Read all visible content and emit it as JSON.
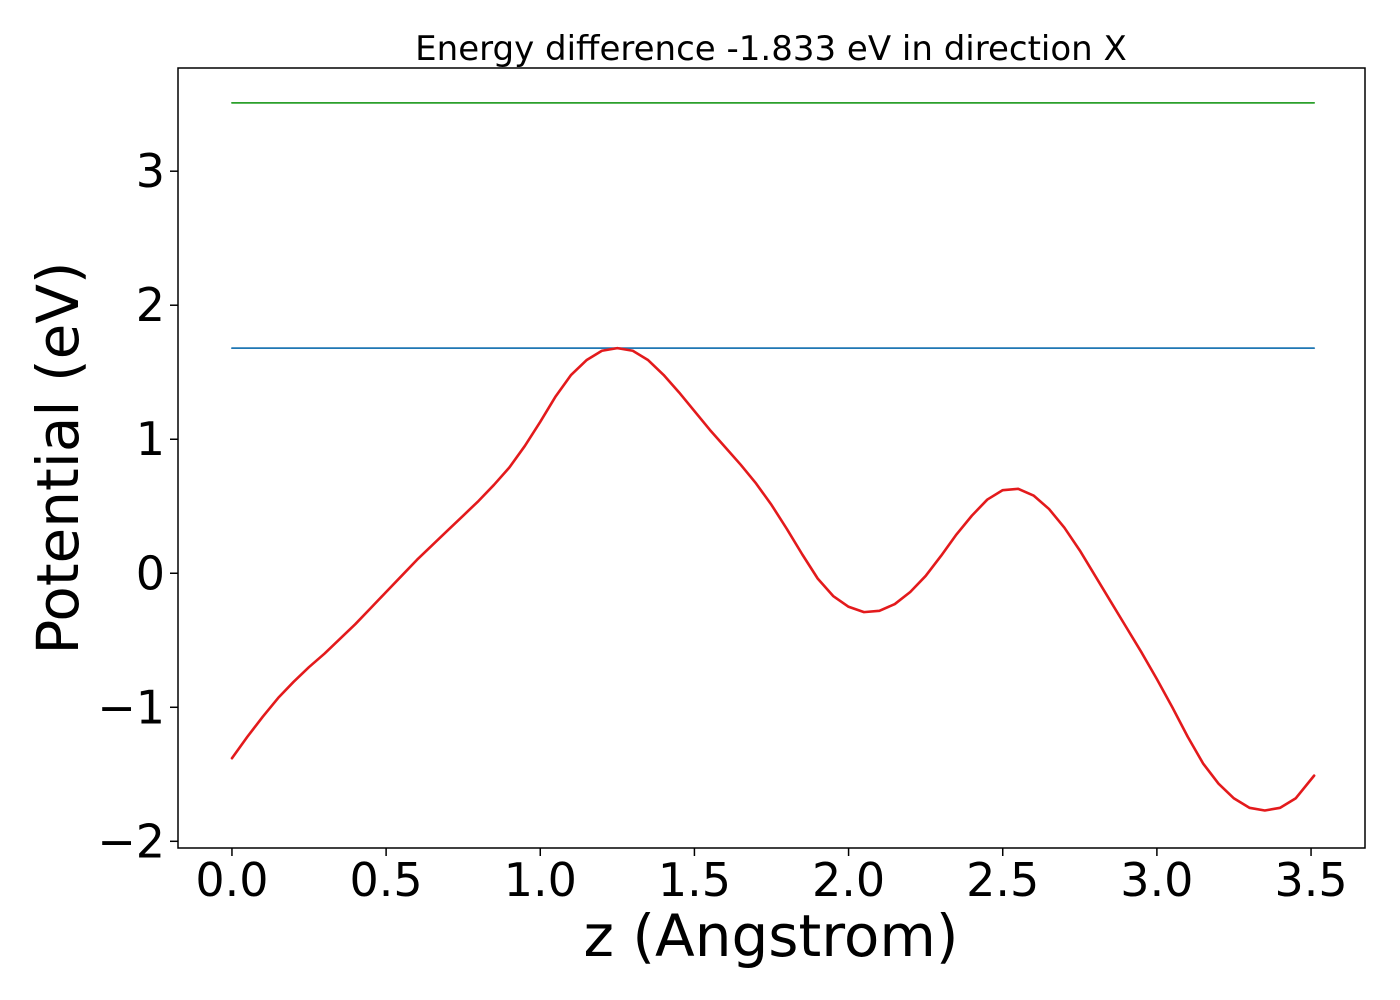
{
  "chart_data": {
    "type": "line",
    "title": "Energy difference -1.833 eV in direction X",
    "xlabel": "z (Angstrom)",
    "ylabel": "Potential (eV)",
    "xlim": [
      -0.175,
      3.675
    ],
    "ylim": [
      -2.05,
      3.77
    ],
    "grid": false,
    "x_ticks": [
      {
        "value": 0.0,
        "label": "0.0"
      },
      {
        "value": 0.5,
        "label": "0.5"
      },
      {
        "value": 1.0,
        "label": "1.0"
      },
      {
        "value": 1.5,
        "label": "1.5"
      },
      {
        "value": 2.0,
        "label": "2.0"
      },
      {
        "value": 2.5,
        "label": "2.5"
      },
      {
        "value": 3.0,
        "label": "3.0"
      },
      {
        "value": 3.5,
        "label": "3.5"
      }
    ],
    "y_ticks": [
      {
        "value": -2,
        "label": "−2"
      },
      {
        "value": -1,
        "label": "−1"
      },
      {
        "value": 0,
        "label": "0"
      },
      {
        "value": 1,
        "label": "1"
      },
      {
        "value": 2,
        "label": "2"
      },
      {
        "value": 3,
        "label": "3"
      }
    ],
    "series": [
      {
        "color": "#2ca02c",
        "x": [
          0.0,
          3.51
        ],
        "y": [
          3.51,
          3.51
        ]
      },
      {
        "color": "#1f77b4",
        "x": [
          0.0,
          3.51
        ],
        "y": [
          1.68,
          1.68
        ]
      },
      {
        "color": "#e31a1c",
        "x": [
          0.0,
          0.05,
          0.1,
          0.15,
          0.2,
          0.25,
          0.3,
          0.35,
          0.4,
          0.45,
          0.5,
          0.55,
          0.6,
          0.65,
          0.7,
          0.75,
          0.8,
          0.85,
          0.9,
          0.95,
          1.0,
          1.05,
          1.1,
          1.15,
          1.2,
          1.25,
          1.3,
          1.35,
          1.4,
          1.45,
          1.5,
          1.55,
          1.6,
          1.65,
          1.7,
          1.75,
          1.8,
          1.85,
          1.9,
          1.95,
          2.0,
          2.05,
          2.1,
          2.15,
          2.2,
          2.25,
          2.3,
          2.35,
          2.4,
          2.45,
          2.5,
          2.55,
          2.6,
          2.65,
          2.7,
          2.75,
          2.8,
          2.85,
          2.9,
          2.95,
          3.0,
          3.05,
          3.1,
          3.15,
          3.2,
          3.25,
          3.3,
          3.35,
          3.4,
          3.45,
          3.51
        ],
        "y": [
          -1.38,
          -1.22,
          -1.07,
          -0.93,
          -0.81,
          -0.7,
          -0.6,
          -0.49,
          -0.38,
          -0.26,
          -0.14,
          -0.02,
          0.1,
          0.21,
          0.32,
          0.43,
          0.54,
          0.66,
          0.79,
          0.95,
          1.13,
          1.32,
          1.48,
          1.59,
          1.66,
          1.68,
          1.66,
          1.59,
          1.48,
          1.35,
          1.21,
          1.07,
          0.94,
          0.81,
          0.67,
          0.51,
          0.33,
          0.14,
          -0.04,
          -0.17,
          -0.25,
          -0.29,
          -0.28,
          -0.23,
          -0.14,
          -0.02,
          0.13,
          0.29,
          0.43,
          0.55,
          0.62,
          0.63,
          0.58,
          0.48,
          0.34,
          0.17,
          -0.02,
          -0.21,
          -0.4,
          -0.59,
          -0.79,
          -1.0,
          -1.22,
          -1.42,
          -1.57,
          -1.68,
          -1.75,
          -1.77,
          -1.75,
          -1.68,
          -1.51
        ]
      }
    ]
  }
}
